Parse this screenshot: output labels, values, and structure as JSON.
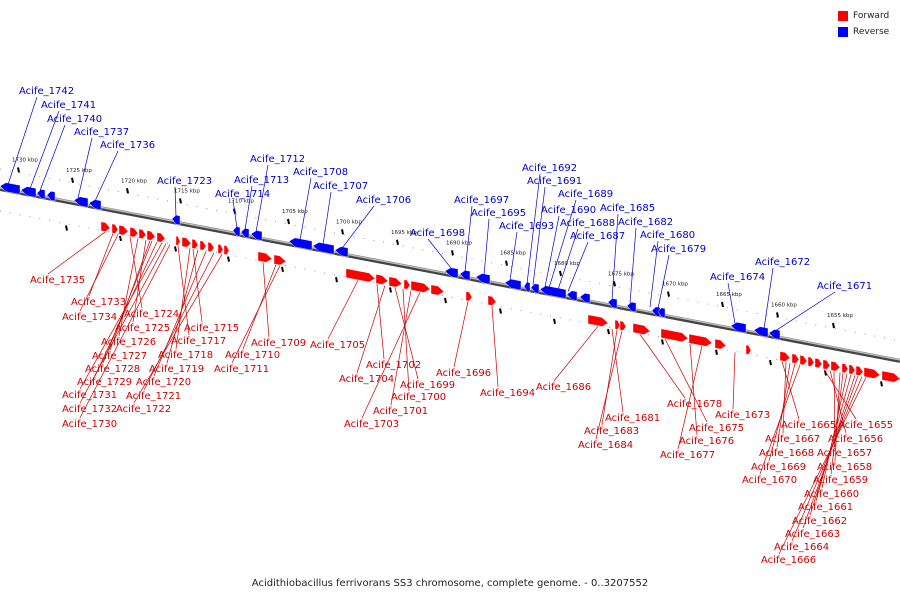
{
  "caption": "Acidithiobacillus ferrivorans SS3 chromosome, complete genome. - 0..3207552",
  "legend": [
    {
      "label": "Forward",
      "color": "#ff0000"
    },
    {
      "label": "Reverse",
      "color": "#0000ff"
    }
  ],
  "colors": {
    "forward": "#ff0000",
    "reverse": "#0000ff",
    "backbone": "#888888",
    "label_forward": "#cc0000",
    "label_reverse": "#0000cc"
  },
  "ticks": [
    "1730 kbp",
    "1725 kbp",
    "1720 kbp",
    "1715 kbp",
    "1710 kbp",
    "1705 kbp",
    "1700 kbp",
    "1695 kbp",
    "1690 kbp",
    "1685 kbp",
    "1680 kbp",
    "1675 kbp",
    "1670 kbp",
    "1665 kbp",
    "1660 kbp",
    "1655 kbp"
  ],
  "reverse_genes": [
    "Acife_1742",
    "Acife_1741",
    "Acife_1740",
    "Acife_1737",
    "Acife_1736",
    "Acife_1723",
    "Acife_1714",
    "Acife_1713",
    "Acife_1712",
    "Acife_1708",
    "Acife_1707",
    "Acife_1706",
    "Acife_1698",
    "Acife_1697",
    "Acife_1695",
    "Acife_1693",
    "Acife_1692",
    "Acife_1691",
    "Acife_1690",
    "Acife_1689",
    "Acife_1688",
    "Acife_1687",
    "Acife_1685",
    "Acife_1682",
    "Acife_1680",
    "Acife_1679",
    "Acife_1674",
    "Acife_1672",
    "Acife_1671"
  ],
  "forward_genes": [
    "Acife_1735",
    "Acife_1733",
    "Acife_1734",
    "Acife_1724",
    "Acife_1726",
    "Acife_1725",
    "Acife_1727",
    "Acife_1728",
    "Acife_1729",
    "Acife_1731",
    "Acife_1732",
    "Acife_1730",
    "Acife_1717",
    "Acife_1715",
    "Acife_1718",
    "Acife_1719",
    "Acife_1720",
    "Acife_1721",
    "Acife_1722",
    "Acife_1709",
    "Acife_1710",
    "Acife_1711",
    "Acife_1705",
    "Acife_1702",
    "Acife_1704",
    "Acife_1699",
    "Acife_1700",
    "Acife_1701",
    "Acife_1703",
    "Acife_1696",
    "Acife_1694",
    "Acife_1686",
    "Acife_1681",
    "Acife_1683",
    "Acife_1684",
    "Acife_1678",
    "Acife_1675",
    "Acife_1676",
    "Acife_1677",
    "Acife_1673",
    "Acife_1665",
    "Acife_1667",
    "Acife_1668",
    "Acife_1669",
    "Acife_1670",
    "Acife_1655",
    "Acife_1656",
    "Acife_1657",
    "Acife_1658",
    "Acife_1659",
    "Acife_1660",
    "Acife_1661",
    "Acife_1662",
    "Acife_1663",
    "Acife_1664",
    "Acife_1666"
  ]
}
